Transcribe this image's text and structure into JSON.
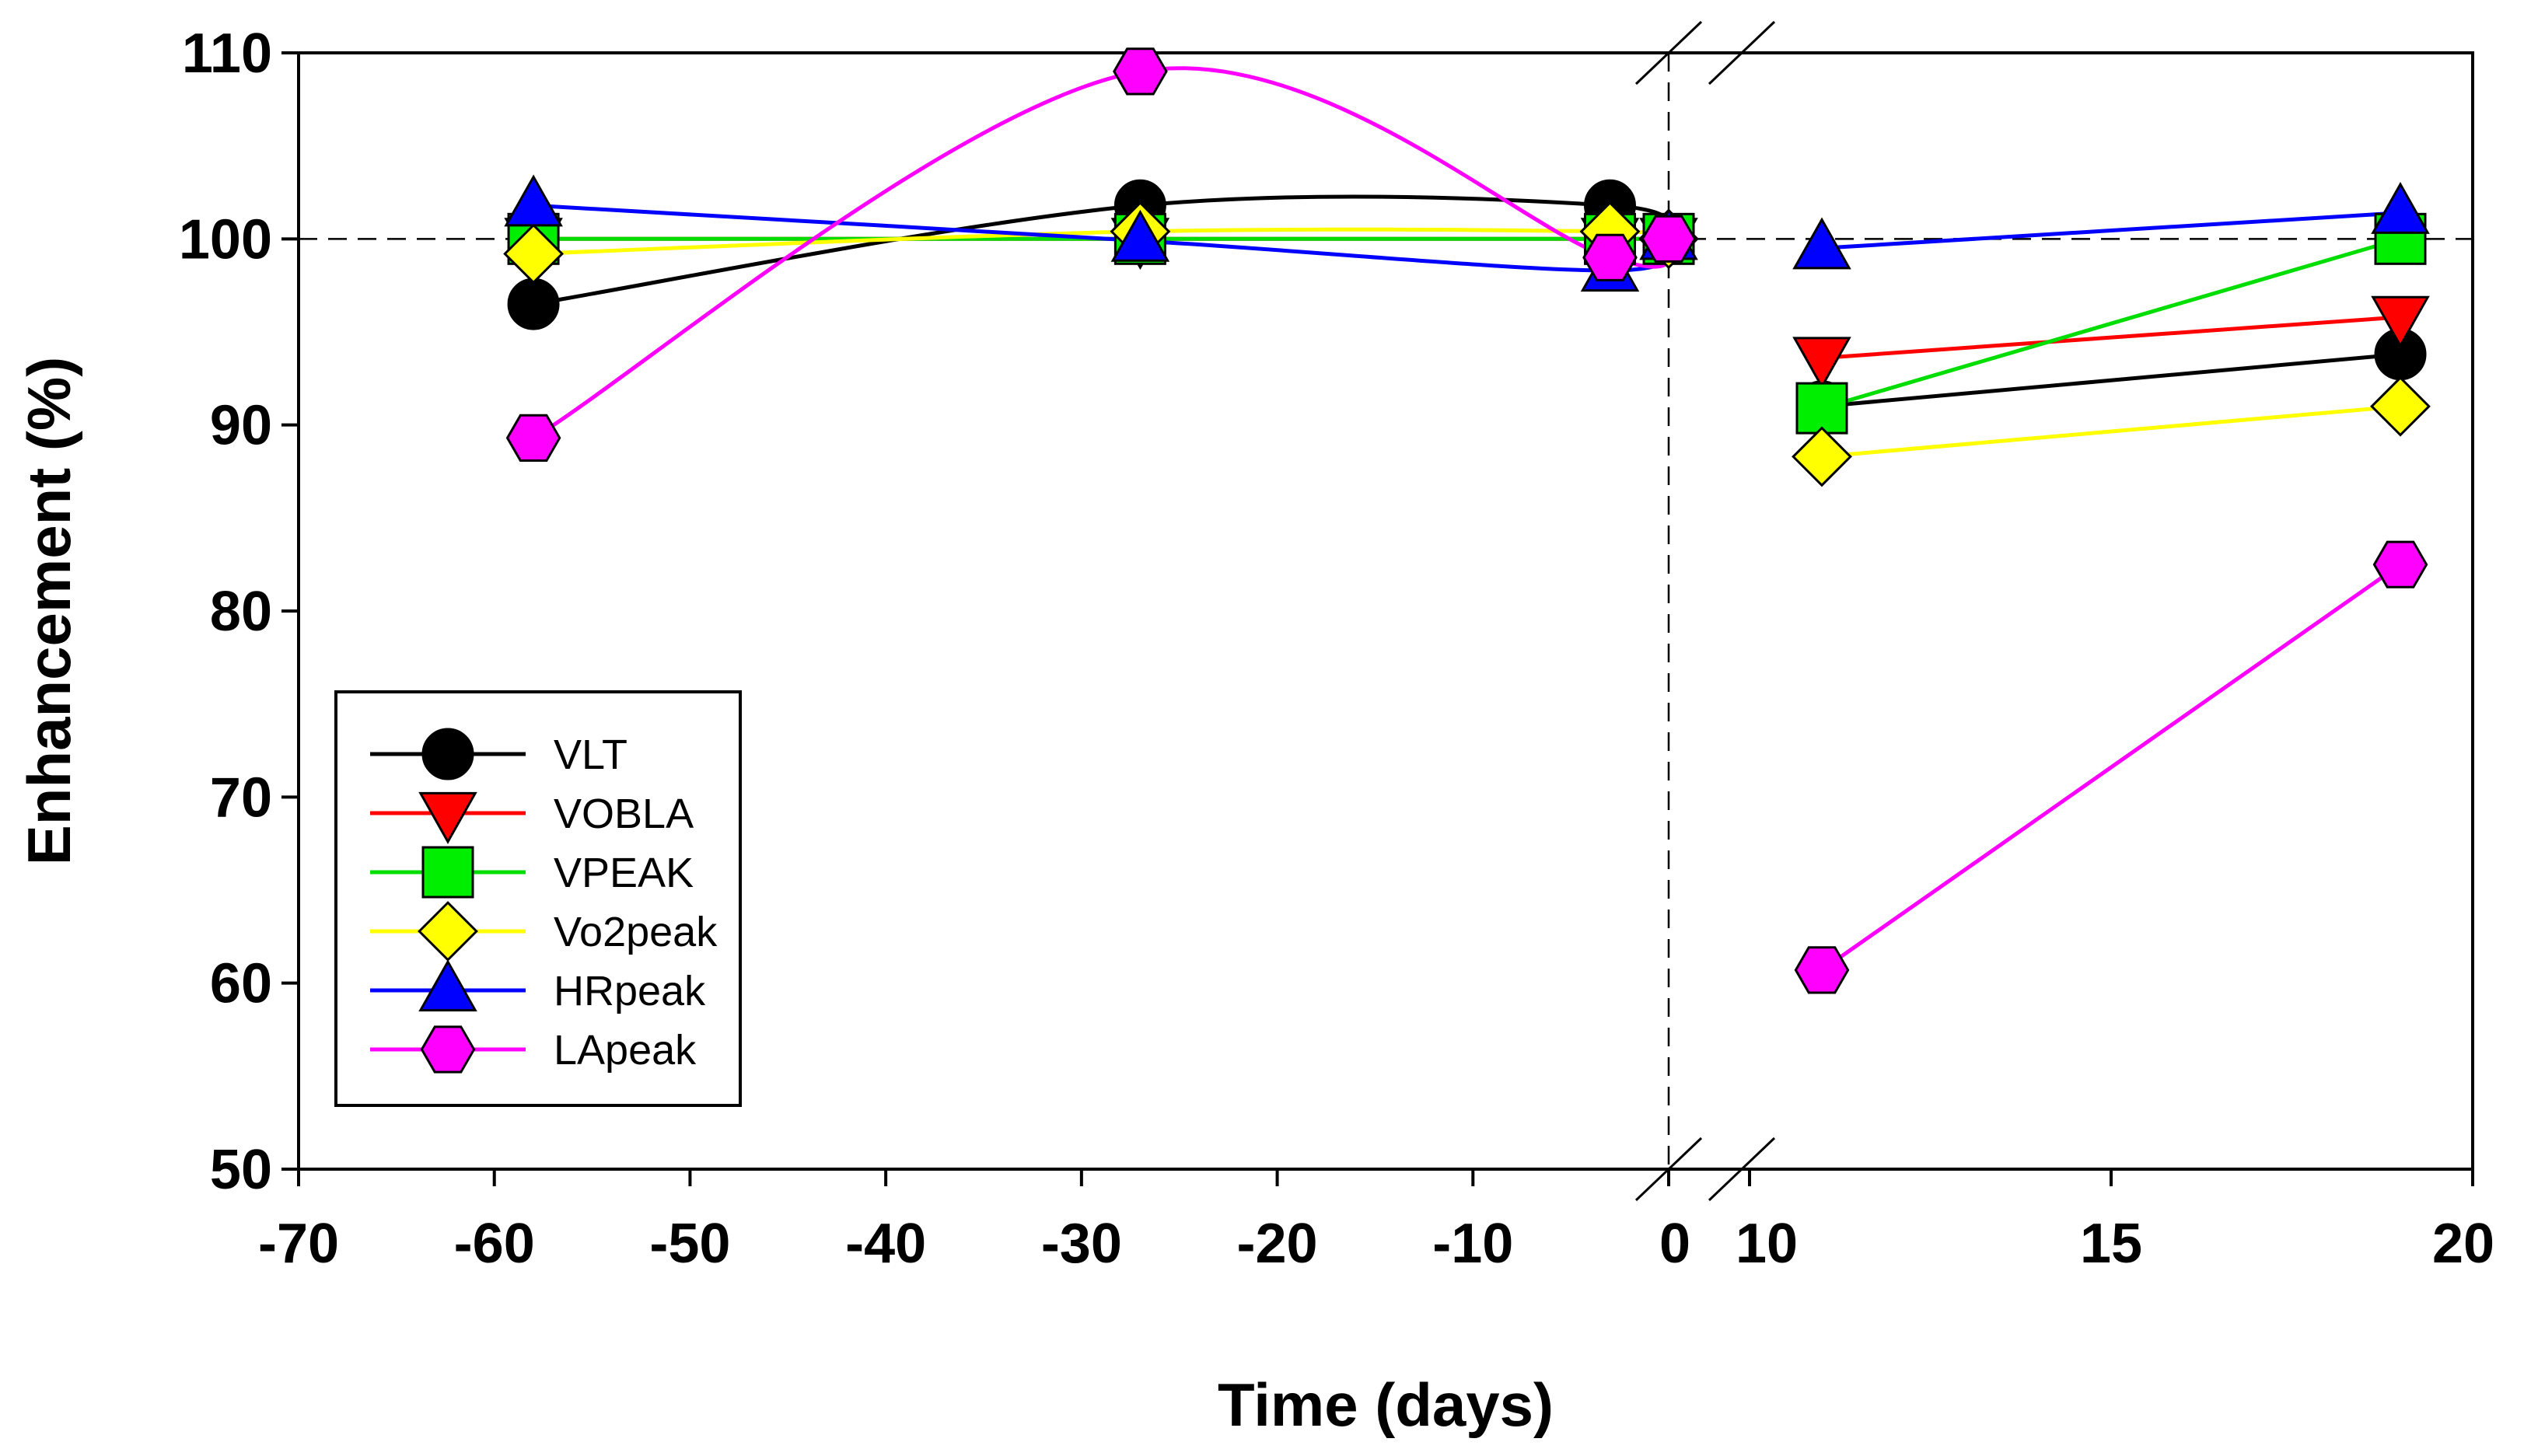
{
  "chart_data": {
    "type": "line",
    "title": "",
    "xlabel": "Time (days)",
    "ylabel": "Enhancement (%)",
    "ylim": [
      50,
      110
    ],
    "yticks": [
      50,
      60,
      70,
      80,
      90,
      100,
      110
    ],
    "x_segments": [
      {
        "range": [
          -70,
          0
        ],
        "ticks": [
          -70,
          -60,
          -50,
          -40,
          -30,
          -20,
          -10,
          0
        ]
      },
      {
        "range": [
          10,
          20
        ],
        "ticks": [
          10,
          15,
          20
        ]
      }
    ],
    "x_tick_labels": [
      "-70",
      "-60",
      "-50",
      "-40",
      "-30",
      "-20",
      "-10",
      "0",
      "10",
      "15",
      "20"
    ],
    "reference_lines": {
      "horizontal_y": 100,
      "vertical_x": 0
    },
    "legend_position": "lower-left",
    "series": [
      {
        "name": "VLT",
        "color": "#000000",
        "marker": "circle",
        "marker_fill": "#000000",
        "x": [
          -58,
          -27,
          -3,
          0,
          11,
          19
        ],
        "y": [
          96.5,
          101.8,
          101.8,
          100,
          91.0,
          93.8
        ]
      },
      {
        "name": "VOBLA",
        "color": "#ff0000",
        "marker": "triangle-down",
        "marker_fill": "#ff0000",
        "x": [
          -58,
          -27,
          -3,
          0,
          11,
          19
        ],
        "y": [
          100.0,
          100.0,
          100.0,
          100,
          93.6,
          95.8
        ]
      },
      {
        "name": "VPEAK",
        "color": "#00dd00",
        "marker": "square",
        "marker_fill": "#00ee00",
        "x": [
          -58,
          -27,
          -3,
          0,
          11,
          19
        ],
        "y": [
          100.0,
          100.0,
          100.0,
          100,
          90.9,
          100.0
        ]
      },
      {
        "name": "Vo2peak",
        "color": "#ffff00",
        "marker": "diamond",
        "marker_fill": "#ffff00",
        "x": [
          -58,
          -27,
          -3,
          0,
          11,
          19
        ],
        "y": [
          99.2,
          100.4,
          100.4,
          100,
          88.3,
          91.0
        ]
      },
      {
        "name": "HRpeak",
        "color": "#0000ff",
        "marker": "triangle-up",
        "marker_fill": "#0000ff",
        "x": [
          -58,
          -27,
          -3,
          0,
          11,
          19
        ],
        "y": [
          101.8,
          99.9,
          98.3,
          100,
          99.5,
          101.4
        ]
      },
      {
        "name": "LApeak",
        "color": "#ff00ff",
        "marker": "hexagon",
        "marker_fill": "#ff00ff",
        "x": [
          -58,
          -27,
          -3,
          0,
          11,
          19
        ],
        "y": [
          89.3,
          109.0,
          99.0,
          100,
          60.7,
          82.5
        ]
      }
    ]
  }
}
